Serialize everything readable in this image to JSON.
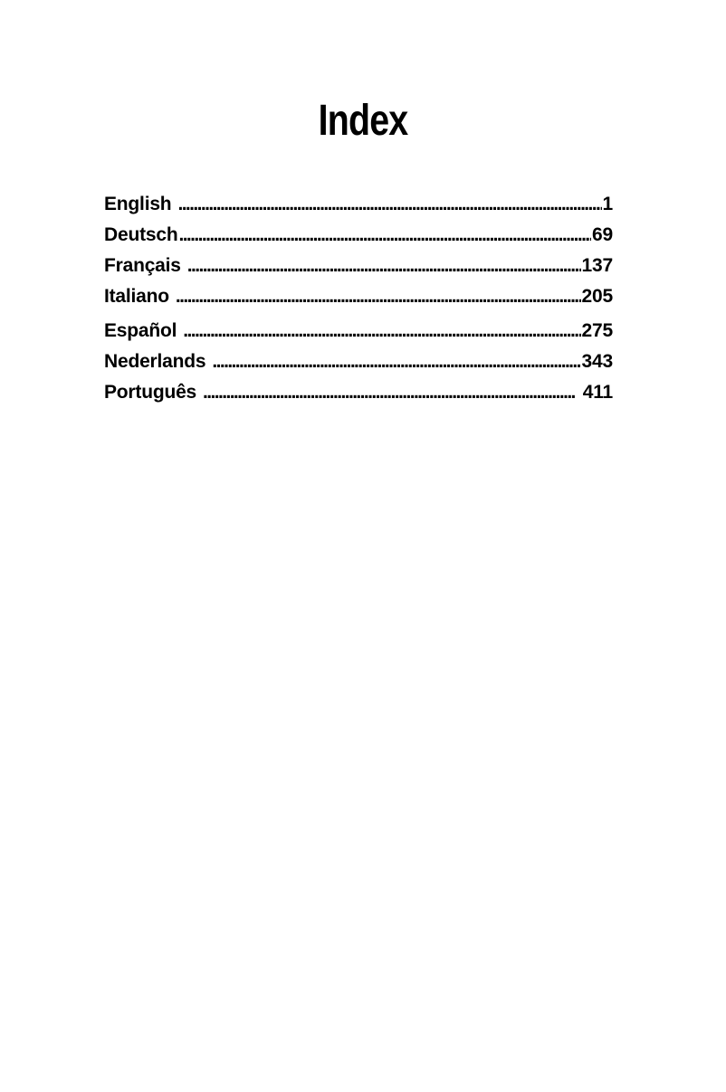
{
  "colors": {
    "text": "#000000",
    "background": "#ffffff"
  },
  "page": {
    "title": "Index"
  },
  "toc": {
    "leader_char": ".",
    "entries": [
      {
        "label": "English",
        "page": "1"
      },
      {
        "label": "Deutsch",
        "page": "69"
      },
      {
        "label": "Français",
        "page": "137"
      },
      {
        "label": "Italiano",
        "page": "205"
      },
      {
        "label": "Español",
        "page": "275"
      },
      {
        "label": "Nederlands",
        "page": "343"
      },
      {
        "label": "Português",
        "page": "411"
      }
    ]
  }
}
